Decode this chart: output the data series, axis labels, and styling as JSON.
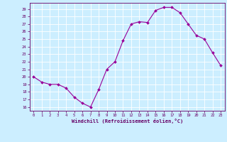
{
  "x": [
    0,
    1,
    2,
    3,
    4,
    5,
    6,
    7,
    8,
    9,
    10,
    11,
    12,
    13,
    14,
    15,
    16,
    17,
    18,
    19,
    20,
    21,
    22,
    23
  ],
  "y": [
    20,
    19.3,
    19,
    19,
    18.5,
    17.3,
    16.5,
    16,
    18.3,
    21,
    22,
    24.8,
    27,
    27.3,
    27.2,
    28.8,
    29.2,
    29.2,
    28.5,
    27,
    25.5,
    25,
    23.2,
    21.5
  ],
  "line_color": "#990099",
  "marker": "D",
  "marker_size": 2.0,
  "bg_color": "#cceeff",
  "grid_color": "#ffffff",
  "xlabel": "Windchill (Refroidissement éolien,°C)",
  "xlabel_color": "#660066",
  "tick_color": "#660066",
  "ylabel_ticks": [
    16,
    17,
    18,
    19,
    20,
    21,
    22,
    23,
    24,
    25,
    26,
    27,
    28,
    29
  ],
  "xlim": [
    -0.5,
    23.5
  ],
  "ylim": [
    15.5,
    29.8
  ]
}
